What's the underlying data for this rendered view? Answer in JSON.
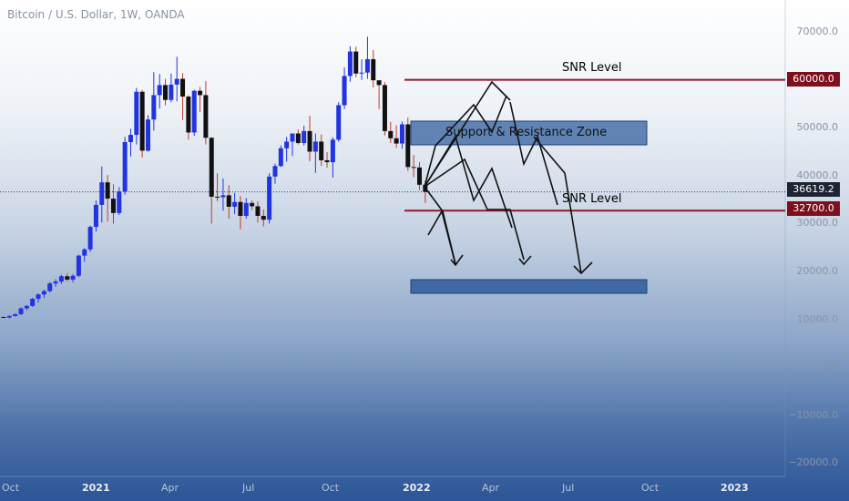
{
  "header": {
    "title": "Bitcoin / U.S. Dollar, 1W, OANDA"
  },
  "colors": {
    "up": "#2233e0",
    "down": "#111111",
    "wick": "#c0392b",
    "snr_line": "#8e1b26",
    "zone_fill": "#2d5a9b",
    "zone_stroke": "#1c3f7a",
    "arrow": "#111111"
  },
  "price_axis": {
    "ticks": [
      "70000.0",
      "50000.0",
      "40000.0",
      "30000.0",
      "20000.0",
      "10000.0",
      "0.0",
      "−10000.0",
      "−20000.0"
    ],
    "tick_values": [
      70000,
      50000,
      40000,
      30000,
      20000,
      10000,
      0,
      -10000,
      -20000
    ],
    "tag_60000": "60000.0",
    "tag_32700": "32700.0",
    "tag_last": "36619.2"
  },
  "time_axis": {
    "labels": [
      "Oct",
      "2021",
      "Apr",
      "Jul",
      "Oct",
      "2022",
      "Apr",
      "Jul",
      "Oct",
      "2023"
    ],
    "strong": [
      false,
      true,
      false,
      false,
      false,
      true,
      false,
      false,
      false,
      true
    ]
  },
  "annotations": {
    "snr_upper": "SNR Level",
    "snr_lower": "SNR Level",
    "zone": "Support & Resistance Zone"
  },
  "chart_data": {
    "type": "candlestick",
    "title": "Bitcoin / U.S. Dollar, 1W, OANDA",
    "x_unit": "week",
    "x_labels": [
      "Oct",
      "2021",
      "Apr",
      "Jul",
      "Oct",
      "2022",
      "Apr",
      "Jul",
      "Oct",
      "2023"
    ],
    "y_range": [
      -25000,
      75000
    ],
    "horizontal_levels": [
      {
        "name": "SNR Level",
        "value": 60000
      },
      {
        "name": "SNR Level",
        "value": 32700
      }
    ],
    "last_price": 36619.2,
    "zones": [
      {
        "name": "Support & Resistance Zone",
        "low": 45000,
        "high": 50000
      },
      {
        "name": "",
        "low": 15000,
        "high": 18000
      }
    ],
    "candles": [
      [
        10500,
        10600,
        10300,
        10400
      ],
      [
        10400,
        10900,
        10200,
        10700
      ],
      [
        10700,
        11200,
        10600,
        11100
      ],
      [
        11100,
        12500,
        10900,
        12300
      ],
      [
        12300,
        13000,
        11900,
        12800
      ],
      [
        12800,
        14500,
        12600,
        14300
      ],
      [
        14300,
        15400,
        13500,
        15200
      ],
      [
        15200,
        16200,
        14500,
        15900
      ],
      [
        15900,
        17800,
        15600,
        17500
      ],
      [
        17500,
        18400,
        16800,
        17900
      ],
      [
        17900,
        19300,
        17400,
        19000
      ],
      [
        19000,
        19600,
        17900,
        18300
      ],
      [
        18300,
        19400,
        17700,
        19100
      ],
      [
        19100,
        23500,
        18800,
        23300
      ],
      [
        23300,
        24900,
        22000,
        24600
      ],
      [
        24600,
        29600,
        24100,
        29300
      ],
      [
        29300,
        34800,
        28300,
        33900
      ],
      [
        33900,
        41900,
        30200,
        38600
      ],
      [
        38600,
        40100,
        30400,
        35200
      ],
      [
        35200,
        38200,
        30000,
        32200
      ],
      [
        32200,
        37600,
        31800,
        36700
      ],
      [
        36700,
        48100,
        36000,
        47000
      ],
      [
        47000,
        49800,
        44000,
        48500
      ],
      [
        48500,
        58300,
        46500,
        57500
      ],
      [
        57500,
        57900,
        43800,
        45200
      ],
      [
        45200,
        52600,
        45000,
        51700
      ],
      [
        51700,
        61600,
        49400,
        56800
      ],
      [
        56800,
        61200,
        54000,
        58900
      ],
      [
        58900,
        60200,
        54700,
        55800
      ],
      [
        55800,
        61300,
        55300,
        59000
      ],
      [
        59000,
        64800,
        55500,
        60200
      ],
      [
        60200,
        61400,
        51600,
        56500
      ],
      [
        56500,
        56800,
        47500,
        49000
      ],
      [
        49000,
        57900,
        48300,
        57700
      ],
      [
        57700,
        58500,
        53300,
        56800
      ],
      [
        56800,
        59700,
        46500,
        47900
      ],
      [
        47900,
        48000,
        30000,
        35600
      ],
      [
        35600,
        40500,
        34700,
        35500
      ],
      [
        35500,
        39400,
        32700,
        35900
      ],
      [
        35900,
        38000,
        31000,
        33500
      ],
      [
        33500,
        36400,
        32000,
        34500
      ],
      [
        34500,
        35700,
        28800,
        31600
      ],
      [
        31600,
        35300,
        31000,
        34300
      ],
      [
        34300,
        34800,
        32800,
        33600
      ],
      [
        33600,
        34600,
        30200,
        31600
      ],
      [
        31600,
        32900,
        29400,
        30800
      ],
      [
        30800,
        40500,
        30000,
        39800
      ],
      [
        39800,
        42500,
        38300,
        42000
      ],
      [
        42000,
        46300,
        41800,
        45700
      ],
      [
        45700,
        48100,
        42900,
        47100
      ],
      [
        47100,
        48300,
        44100,
        48800
      ],
      [
        48800,
        49600,
        46500,
        46800
      ],
      [
        46800,
        50400,
        46300,
        49300
      ],
      [
        49300,
        52500,
        43000,
        45000
      ],
      [
        45000,
        48800,
        40600,
        47100
      ],
      [
        47100,
        48600,
        42000,
        43200
      ],
      [
        43200,
        44900,
        41700,
        42800
      ],
      [
        42800,
        48000,
        39600,
        47500
      ],
      [
        47500,
        55300,
        47100,
        54700
      ],
      [
        54700,
        62600,
        53900,
        60800
      ],
      [
        60800,
        67000,
        59600,
        65900
      ],
      [
        65900,
        66900,
        60500,
        61300
      ],
      [
        61300,
        64300,
        60000,
        61500
      ],
      [
        61500,
        69000,
        60200,
        64300
      ],
      [
        64300,
        66200,
        58400,
        59900
      ],
      [
        59900,
        59800,
        53900,
        58900
      ],
      [
        58900,
        59500,
        48400,
        49300
      ],
      [
        49300,
        51200,
        46800,
        47800
      ],
      [
        47800,
        50500,
        45800,
        46700
      ],
      [
        46700,
        51300,
        45600,
        50700
      ],
      [
        50700,
        52100,
        41000,
        41800
      ],
      [
        41800,
        44300,
        39700,
        41700
      ],
      [
        41700,
        42800,
        37000,
        38100
      ],
      [
        38100,
        38900,
        34300,
        36619
      ]
    ],
    "projection": "bearish zigzag paths drawn from ~36619 toward the 15000-18000 zone, and a bullish zigzag toward 60000"
  }
}
